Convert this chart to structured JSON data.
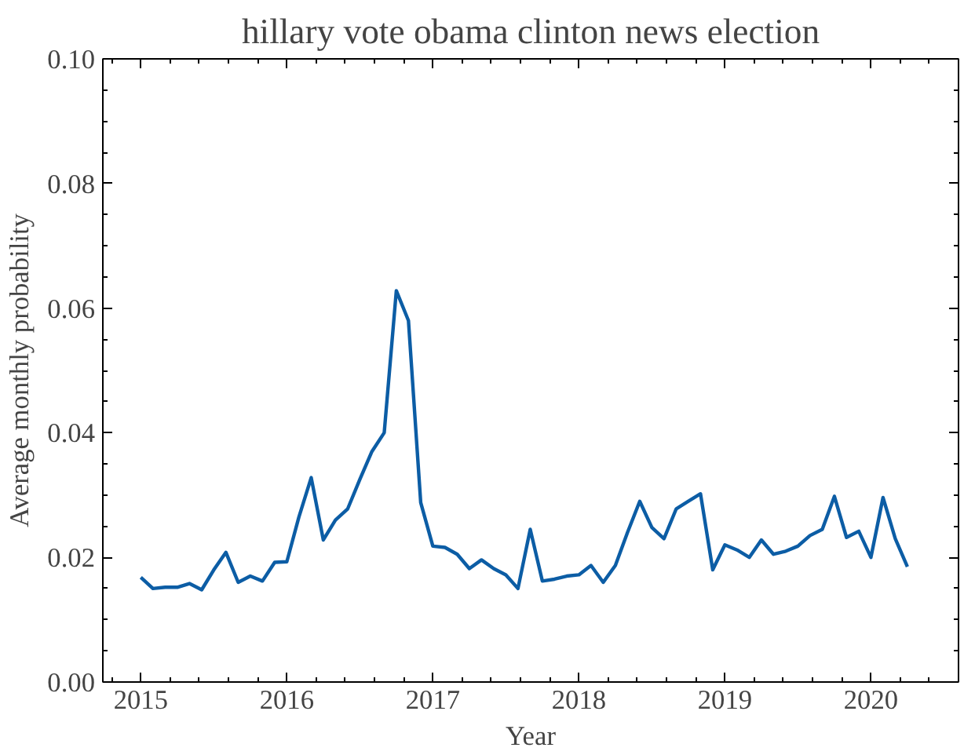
{
  "chart_data": {
    "type": "line",
    "title": "hillary vote obama clinton news election",
    "xlabel": "Year",
    "ylabel": "Average monthly probability",
    "x": [
      2015.0,
      2015.083,
      2015.167,
      2015.25,
      2015.333,
      2015.417,
      2015.5,
      2015.583,
      2015.667,
      2015.75,
      2015.833,
      2015.917,
      2016.0,
      2016.083,
      2016.167,
      2016.25,
      2016.333,
      2016.417,
      2016.5,
      2016.583,
      2016.667,
      2016.75,
      2016.833,
      2016.917,
      2017.0,
      2017.083,
      2017.167,
      2017.25,
      2017.333,
      2017.417,
      2017.5,
      2017.583,
      2017.667,
      2017.75,
      2017.833,
      2017.917,
      2018.0,
      2018.083,
      2018.167,
      2018.25,
      2018.333,
      2018.417,
      2018.5,
      2018.583,
      2018.667,
      2018.75,
      2018.833,
      2018.917,
      2019.0,
      2019.083,
      2019.167,
      2019.25,
      2019.333,
      2019.417,
      2019.5,
      2019.583,
      2019.667,
      2019.75,
      2019.833,
      2019.917,
      2020.0,
      2020.083,
      2020.167,
      2020.25
    ],
    "series": [
      {
        "color": "#0c5da5",
        "values": [
          0.0168,
          0.015,
          0.0152,
          0.0152,
          0.0158,
          0.0148,
          0.018,
          0.0208,
          0.016,
          0.017,
          0.0162,
          0.0192,
          0.0193,
          0.0265,
          0.0328,
          0.0228,
          0.026,
          0.0278,
          0.0325,
          0.037,
          0.04,
          0.0628,
          0.058,
          0.0288,
          0.0218,
          0.0216,
          0.0205,
          0.0182,
          0.0196,
          0.0182,
          0.0172,
          0.015,
          0.0245,
          0.0162,
          0.0165,
          0.017,
          0.0172,
          0.0187,
          0.016,
          0.0187,
          0.024,
          0.029,
          0.0248,
          0.023,
          0.0278,
          0.029,
          0.0302,
          0.018,
          0.022,
          0.0212,
          0.02,
          0.0228,
          0.0205,
          0.021,
          0.0218,
          0.0235,
          0.0245,
          0.0298,
          0.0232,
          0.0242,
          0.02,
          0.0296,
          0.023,
          0.0185
        ]
      }
    ],
    "xlim": [
      2014.74,
      2020.6
    ],
    "xticks": [
      2015,
      2016,
      2017,
      2018,
      2019,
      2020
    ],
    "ylim": [
      0,
      0.1
    ],
    "yticks": [
      {
        "value": 0,
        "label": "0.00"
      },
      {
        "value": 0.02,
        "label": "0.02"
      },
      {
        "value": 0.04,
        "label": "0.04"
      },
      {
        "value": 0.06,
        "label": "0.06"
      },
      {
        "value": 0.08,
        "label": "0.08"
      },
      {
        "value": 0.1,
        "label": "0.10"
      }
    ],
    "grid": false,
    "marker": "none",
    "line_style": "solid"
  }
}
